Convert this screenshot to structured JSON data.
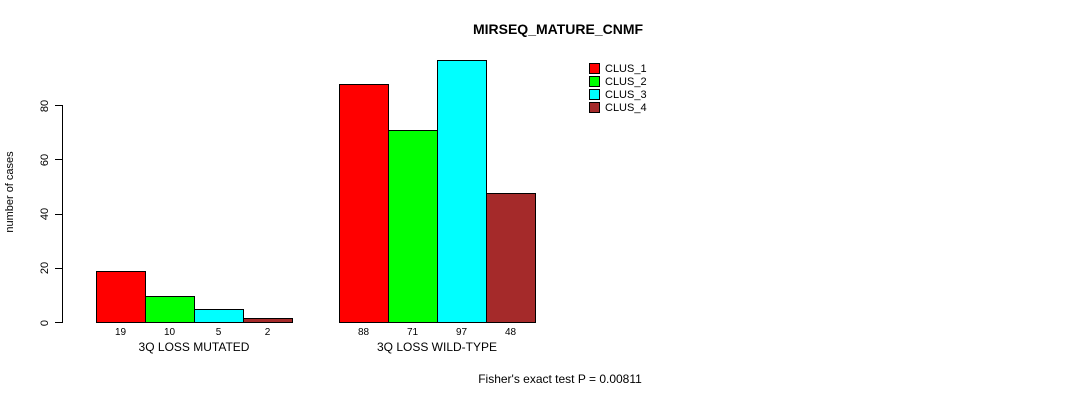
{
  "chart_data": {
    "type": "bar",
    "title": "MIRSEQ_MATURE_CNMF",
    "ylabel": "number of cases",
    "xlabel": "",
    "ylim": [
      0,
      100
    ],
    "yticks": [
      0,
      20,
      40,
      60,
      80
    ],
    "grid": false,
    "legend_position": "top-right",
    "series": [
      {
        "name": "CLUS_1",
        "color": "#FF0000"
      },
      {
        "name": "CLUS_2",
        "color": "#00FF00"
      },
      {
        "name": "CLUS_3",
        "color": "#00FFFF"
      },
      {
        "name": "CLUS_4",
        "color": "#A52A2A"
      }
    ],
    "categories": [
      "3Q LOSS MUTATED",
      "3Q LOSS WILD-TYPE"
    ],
    "groups": [
      {
        "label": "3Q LOSS MUTATED",
        "values": [
          19,
          10,
          5,
          2
        ]
      },
      {
        "label": "3Q LOSS WILD-TYPE",
        "values": [
          88,
          71,
          97,
          48
        ]
      }
    ],
    "footnote": "Fisher's exact test P = 0.00811"
  }
}
